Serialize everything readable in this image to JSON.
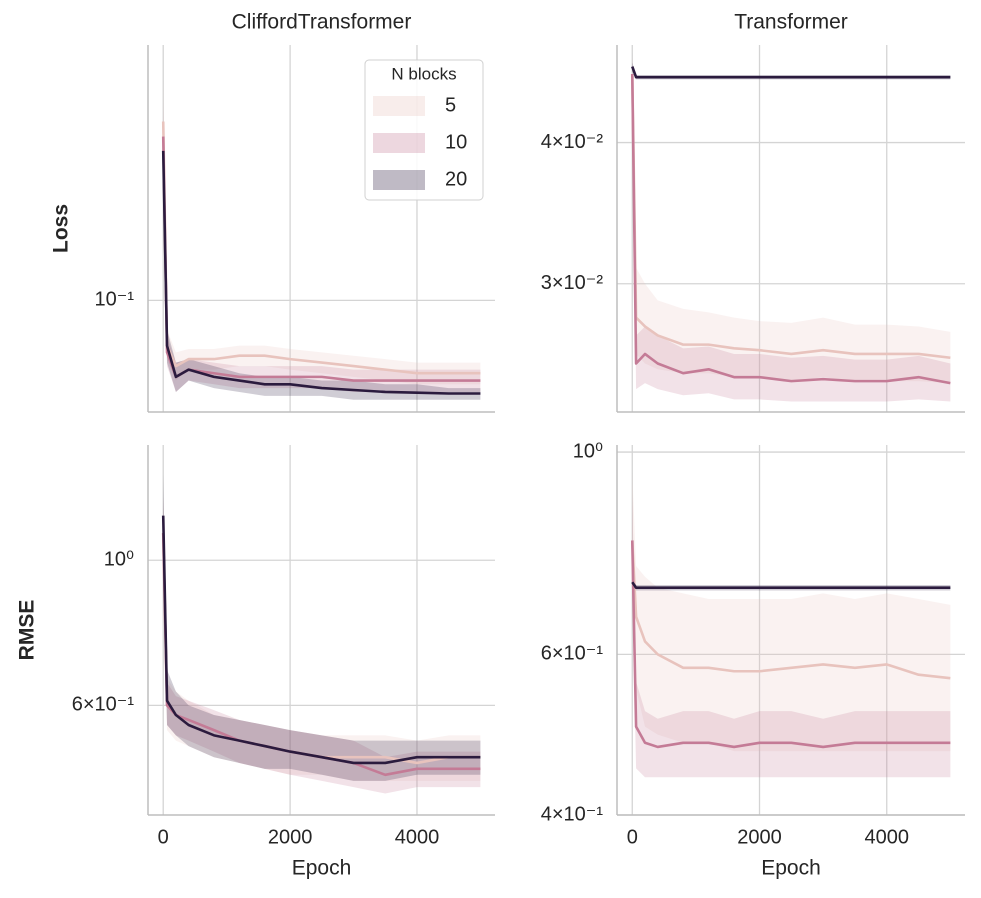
{
  "chart_data": [
    {
      "type": "line",
      "title": "CliffordTransformer",
      "ylabel": "Loss",
      "yscale": "log",
      "grid": true,
      "show_xticklabels": false,
      "legend_title": "N blocks",
      "legend": "upper right",
      "x": [
        0,
        60,
        200,
        400,
        800,
        1200,
        1600,
        2000,
        2500,
        3000,
        3500,
        4000,
        4500,
        5000
      ],
      "xlim": [
        -240,
        5230
      ],
      "xticks": [
        0,
        2000,
        4000
      ],
      "ylim": [
        0.067,
        0.25
      ],
      "yticks": [
        {
          "value": 0.1,
          "label": "10⁻¹"
        }
      ],
      "series": [
        {
          "name": "5",
          "color": "#e8c3bd",
          "values": [
            0.19,
            0.085,
            0.079,
            0.081,
            0.081,
            0.082,
            0.082,
            0.081,
            0.08,
            0.079,
            0.078,
            0.077,
            0.077,
            0.077
          ],
          "lower": [
            0.17,
            0.081,
            0.075,
            0.078,
            0.078,
            0.079,
            0.079,
            0.078,
            0.077,
            0.076,
            0.075,
            0.074,
            0.074,
            0.074
          ],
          "upper": [
            0.22,
            0.09,
            0.083,
            0.084,
            0.084,
            0.085,
            0.085,
            0.084,
            0.083,
            0.082,
            0.081,
            0.08,
            0.08,
            0.08
          ]
        },
        {
          "name": "10",
          "color": "#c47b96",
          "values": [
            0.18,
            0.083,
            0.076,
            0.078,
            0.077,
            0.076,
            0.076,
            0.076,
            0.076,
            0.075,
            0.075,
            0.075,
            0.075,
            0.075
          ],
          "lower": [
            0.16,
            0.079,
            0.072,
            0.075,
            0.074,
            0.073,
            0.073,
            0.073,
            0.073,
            0.072,
            0.072,
            0.072,
            0.072,
            0.072
          ],
          "upper": [
            0.2,
            0.088,
            0.08,
            0.081,
            0.08,
            0.079,
            0.079,
            0.079,
            0.079,
            0.078,
            0.078,
            0.078,
            0.078,
            0.078
          ]
        },
        {
          "name": "20",
          "color": "#2b1b3e",
          "values": [
            0.171,
            0.085,
            0.076,
            0.078,
            0.076,
            0.075,
            0.074,
            0.074,
            0.073,
            0.0725,
            0.072,
            0.0718,
            0.0716,
            0.0716
          ],
          "lower": [
            0.16,
            0.08,
            0.072,
            0.075,
            0.073,
            0.072,
            0.071,
            0.071,
            0.071,
            0.07,
            0.07,
            0.07,
            0.07,
            0.07
          ],
          "upper": [
            0.18,
            0.09,
            0.08,
            0.081,
            0.079,
            0.077,
            0.076,
            0.076,
            0.075,
            0.075,
            0.074,
            0.074,
            0.073,
            0.073
          ]
        }
      ]
    },
    {
      "type": "line",
      "title": "Transformer",
      "yscale": "log",
      "grid": true,
      "show_xticklabels": false,
      "x": [
        0,
        60,
        200,
        400,
        800,
        1200,
        1600,
        2000,
        2500,
        3000,
        3500,
        4000,
        4500,
        5000
      ],
      "xlim": [
        -240,
        5230
      ],
      "xticks": [
        0,
        2000,
        4000
      ],
      "ylim": [
        0.0231,
        0.0488
      ],
      "yticks": [
        {
          "value": 0.03,
          "label": "3×10⁻²"
        },
        {
          "value": 0.04,
          "label": "4×10⁻²"
        }
      ],
      "series": [
        {
          "color": "#e8c3bd",
          "values": [
            0.046,
            0.028,
            0.0275,
            0.027,
            0.0265,
            0.0265,
            0.0263,
            0.0262,
            0.026,
            0.0262,
            0.026,
            0.026,
            0.026,
            0.0258
          ],
          "lower": [
            0.044,
            0.026,
            0.0255,
            0.0252,
            0.025,
            0.025,
            0.0248,
            0.0248,
            0.0246,
            0.0248,
            0.0246,
            0.0246,
            0.0246,
            0.0245
          ],
          "upper": [
            0.048,
            0.031,
            0.03,
            0.029,
            0.0285,
            0.0283,
            0.028,
            0.0278,
            0.0277,
            0.028,
            0.0276,
            0.0276,
            0.0275,
            0.0272
          ]
        },
        {
          "color": "#c47b96",
          "values": [
            0.046,
            0.0255,
            0.026,
            0.0255,
            0.025,
            0.0252,
            0.0248,
            0.0248,
            0.0246,
            0.0247,
            0.0246,
            0.0246,
            0.0248,
            0.0245
          ],
          "lower": [
            0.044,
            0.0242,
            0.0245,
            0.0242,
            0.0239,
            0.024,
            0.0237,
            0.0237,
            0.0236,
            0.0236,
            0.0236,
            0.0236,
            0.0237,
            0.0236
          ],
          "upper": [
            0.048,
            0.027,
            0.0275,
            0.027,
            0.0263,
            0.0264,
            0.026,
            0.026,
            0.0258,
            0.0259,
            0.0257,
            0.0257,
            0.0259,
            0.0255
          ]
        },
        {
          "color": "#2b1b3e",
          "values": [
            0.0467,
            0.0457,
            0.0457,
            0.0457,
            0.0457,
            0.0457,
            0.0457,
            0.0457,
            0.0457,
            0.0457,
            0.0457,
            0.0457,
            0.0457,
            0.0457
          ],
          "lower": [
            0.0462,
            0.0455,
            0.0455,
            0.0455,
            0.0455,
            0.0455,
            0.0455,
            0.0455,
            0.0455,
            0.0455,
            0.0455,
            0.0455,
            0.0455,
            0.0455
          ],
          "upper": [
            0.0471,
            0.0459,
            0.0459,
            0.0459,
            0.0459,
            0.0459,
            0.0459,
            0.0459,
            0.0459,
            0.0459,
            0.0459,
            0.0459,
            0.0459,
            0.0459
          ]
        }
      ]
    },
    {
      "type": "line",
      "ylabel": "RMSE",
      "xlabel": "Epoch",
      "yscale": "log",
      "grid": true,
      "show_xticklabels": true,
      "x": [
        0,
        60,
        200,
        400,
        800,
        1200,
        1600,
        2000,
        2500,
        3000,
        3500,
        4000,
        4500,
        5000
      ],
      "xlim": [
        -240,
        5230
      ],
      "xticks": [
        0,
        2000,
        4000
      ],
      "ylim": [
        0.408,
        1.5
      ],
      "yticks": [
        {
          "value": 0.6,
          "label": "6×10⁻¹"
        },
        {
          "value": 1,
          "label": "10⁰"
        }
      ],
      "series": [
        {
          "color": "#e8c3bd",
          "values": [
            1.1,
            0.6,
            0.58,
            0.56,
            0.54,
            0.53,
            0.52,
            0.51,
            0.5,
            0.5,
            0.5,
            0.49,
            0.5,
            0.5
          ],
          "lower": [
            0.95,
            0.55,
            0.53,
            0.52,
            0.5,
            0.49,
            0.48,
            0.47,
            0.47,
            0.46,
            0.46,
            0.46,
            0.46,
            0.46
          ],
          "upper": [
            1.25,
            0.66,
            0.63,
            0.61,
            0.58,
            0.57,
            0.56,
            0.55,
            0.54,
            0.54,
            0.54,
            0.53,
            0.54,
            0.54
          ]
        },
        {
          "color": "#c47b96",
          "values": [
            1.1,
            0.6,
            0.58,
            0.57,
            0.55,
            0.53,
            0.52,
            0.51,
            0.5,
            0.49,
            0.47,
            0.48,
            0.48,
            0.48
          ],
          "lower": [
            0.95,
            0.56,
            0.54,
            0.53,
            0.51,
            0.49,
            0.48,
            0.47,
            0.46,
            0.45,
            0.44,
            0.45,
            0.45,
            0.45
          ],
          "upper": [
            1.25,
            0.65,
            0.62,
            0.61,
            0.59,
            0.57,
            0.56,
            0.55,
            0.54,
            0.53,
            0.5,
            0.51,
            0.51,
            0.51
          ]
        },
        {
          "color": "#2b1b3e",
          "values": [
            1.17,
            0.61,
            0.58,
            0.56,
            0.54,
            0.53,
            0.52,
            0.51,
            0.5,
            0.49,
            0.49,
            0.5,
            0.5,
            0.5
          ],
          "lower": [
            1.0,
            0.56,
            0.54,
            0.52,
            0.5,
            0.49,
            0.48,
            0.48,
            0.47,
            0.46,
            0.46,
            0.47,
            0.47,
            0.47
          ],
          "upper": [
            1.35,
            0.68,
            0.63,
            0.6,
            0.58,
            0.57,
            0.56,
            0.55,
            0.54,
            0.53,
            0.53,
            0.53,
            0.53,
            0.53
          ]
        }
      ]
    },
    {
      "type": "line",
      "xlabel": "Epoch",
      "yscale": "log",
      "grid": true,
      "show_xticklabels": true,
      "x": [
        0,
        60,
        200,
        400,
        800,
        1200,
        1600,
        2000,
        2500,
        3000,
        3500,
        4000,
        4500,
        5000
      ],
      "xlim": [
        -240,
        5230
      ],
      "xticks": [
        0,
        2000,
        4000
      ],
      "ylim": [
        0.4,
        1.018
      ],
      "yticks": [
        {
          "value": 0.4,
          "label": "4×10⁻¹"
        },
        {
          "value": 0.6,
          "label": "6×10⁻¹"
        },
        {
          "value": 1,
          "label": "10⁰"
        }
      ],
      "series": [
        {
          "color": "#e8c3bd",
          "values": [
            0.8,
            0.66,
            0.62,
            0.6,
            0.58,
            0.58,
            0.575,
            0.575,
            0.58,
            0.585,
            0.58,
            0.585,
            0.57,
            0.565
          ],
          "lower": [
            0.7,
            0.55,
            0.5,
            0.49,
            0.48,
            0.48,
            0.47,
            0.47,
            0.47,
            0.47,
            0.47,
            0.47,
            0.47,
            0.47
          ],
          "upper": [
            0.95,
            0.75,
            0.73,
            0.71,
            0.7,
            0.69,
            0.69,
            0.69,
            0.69,
            0.7,
            0.69,
            0.7,
            0.69,
            0.68
          ]
        },
        {
          "color": "#c47b96",
          "values": [
            0.8,
            0.5,
            0.48,
            0.475,
            0.48,
            0.48,
            0.475,
            0.48,
            0.48,
            0.475,
            0.48,
            0.48,
            0.48,
            0.48
          ],
          "lower": [
            0.7,
            0.45,
            0.44,
            0.44,
            0.44,
            0.44,
            0.44,
            0.44,
            0.44,
            0.44,
            0.44,
            0.44,
            0.44,
            0.44
          ],
          "upper": [
            0.9,
            0.56,
            0.52,
            0.51,
            0.52,
            0.52,
            0.51,
            0.52,
            0.52,
            0.51,
            0.52,
            0.52,
            0.52,
            0.52
          ]
        },
        {
          "color": "#2b1b3e",
          "values": [
            0.72,
            0.71,
            0.71,
            0.71,
            0.71,
            0.71,
            0.71,
            0.71,
            0.71,
            0.71,
            0.71,
            0.71,
            0.71,
            0.71
          ],
          "lower": [
            0.7,
            0.705,
            0.705,
            0.705,
            0.705,
            0.705,
            0.705,
            0.705,
            0.705,
            0.705,
            0.705,
            0.705,
            0.705,
            0.705
          ],
          "upper": [
            0.74,
            0.715,
            0.715,
            0.715,
            0.715,
            0.715,
            0.715,
            0.715,
            0.715,
            0.715,
            0.715,
            0.715,
            0.715,
            0.715
          ]
        }
      ]
    }
  ]
}
